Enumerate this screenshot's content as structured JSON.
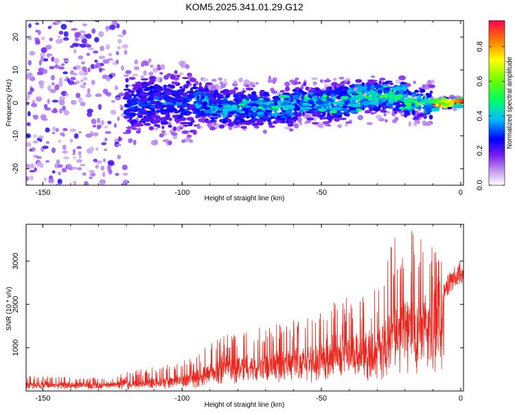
{
  "title": "KOM5.2025.341.01.29.G12",
  "chart_data": [
    {
      "type": "heatmap",
      "xlabel": "Height of straight line (km)",
      "ylabel": "Frequency (Hz)",
      "xlim": [
        -156,
        1
      ],
      "ylim": [
        -25,
        25
      ],
      "xticks": [
        -150,
        -100,
        -50,
        0
      ],
      "yticks": [
        -20,
        -10,
        0,
        10,
        20
      ],
      "colorbar": {
        "label": "Normalized spectral amplitude",
        "range": [
          0,
          0.95
        ],
        "ticks": [
          0.0,
          0.2,
          0.4,
          0.6,
          0.8
        ]
      },
      "description_bands": [
        {
          "x_from": -156,
          "x_to": -120,
          "freq_spread": 25,
          "amplitude": 0.15
        },
        {
          "x_from": -120,
          "x_to": -95,
          "freq_spread": 10,
          "amplitude": 0.2
        },
        {
          "x_from": -95,
          "x_to": -40,
          "freq_spread": 6,
          "amplitude": 0.3
        },
        {
          "x_from": -40,
          "x_to": -10,
          "freq_spread": 5,
          "amplitude": 0.4
        },
        {
          "x_from": -10,
          "x_to": 1,
          "freq_spread": 1.5,
          "amplitude": 0.9
        }
      ]
    },
    {
      "type": "line",
      "xlabel": "Height of straight line (km)",
      "ylabel": "SNR (10 * v/v)",
      "xlim": [
        -156,
        1
      ],
      "ylim": [
        0,
        3850
      ],
      "xticks": [
        -150,
        -100,
        -50,
        0
      ],
      "yticks": [
        1000,
        2000,
        3000
      ],
      "series": [
        {
          "name": "SNR",
          "color": "#e8281f",
          "envelope_x": [
            -156,
            -130,
            -115,
            -100,
            -95,
            -85,
            -70,
            -55,
            -45,
            -30,
            -25,
            -20,
            -15,
            -10,
            -5,
            0,
            1
          ],
          "envelope_base": [
            150,
            150,
            180,
            250,
            300,
            550,
            650,
            750,
            850,
            1000,
            1300,
            1600,
            1500,
            1800,
            2300,
            2600,
            2600
          ],
          "envelope_peak": [
            350,
            320,
            500,
            700,
            900,
            1300,
            1500,
            1700,
            2100,
            2400,
            3600,
            3800,
            3700,
            3300,
            3000,
            3400,
            3000
          ]
        }
      ]
    }
  ]
}
